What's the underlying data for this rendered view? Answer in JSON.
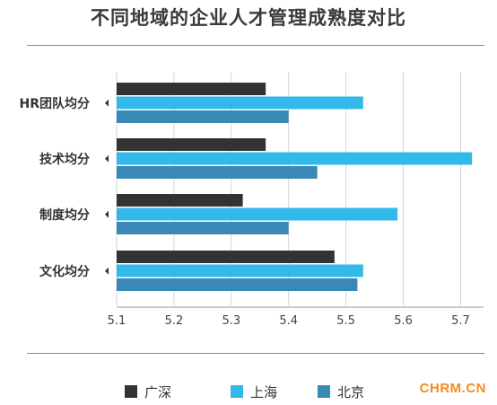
{
  "chart_data": {
    "type": "bar",
    "orientation": "horizontal",
    "title": "不同地域的企业人才管理成熟度对比",
    "categories": [
      "HR团队均分",
      "技术均分",
      "制度均分",
      "文化均分"
    ],
    "series": [
      {
        "name": "广深",
        "color": "#333333",
        "values": [
          5.36,
          5.36,
          5.32,
          5.48
        ]
      },
      {
        "name": "上海",
        "color": "#33b9e9",
        "values": [
          5.53,
          5.72,
          5.59,
          5.53
        ]
      },
      {
        "name": "北京",
        "color": "#3a88b6",
        "values": [
          5.4,
          5.45,
          5.4,
          5.52
        ]
      }
    ],
    "xlim": [
      5.1,
      5.74
    ],
    "xticks": [
      "5.1",
      "5.2",
      "5.3",
      "5.4",
      "5.5",
      "5.6",
      "5.7"
    ],
    "grid": true,
    "legend_position": "bottom"
  },
  "watermark": "CHRM.CN"
}
